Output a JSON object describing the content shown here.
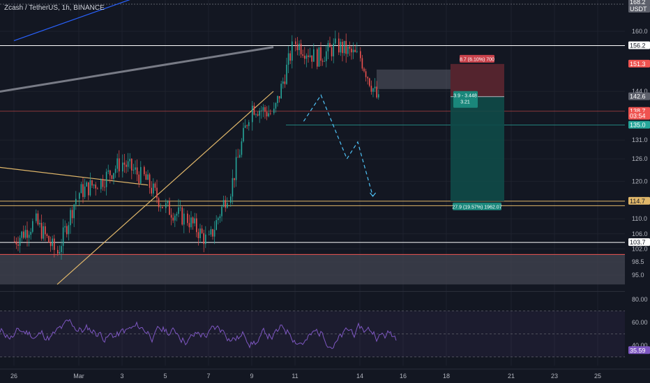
{
  "header": {
    "symbol": "Zcash / TetherUS, 1h, BINANCE"
  },
  "colors": {
    "background": "#131722",
    "grid": "#1e222d",
    "up": "#26a69a",
    "down": "#ef5350",
    "trend_blue": "#2962ff",
    "trend_gray": "#787b86",
    "trend_yellow": "#e0b76a",
    "resistance": "#ffffff",
    "support_zone": "#434651",
    "rsi": "#7e57c2",
    "target_zone": "#0f4a48",
    "stop_zone": "#5c2630"
  },
  "chart_data": [
    {
      "type": "candlestick",
      "title": "Zcash / TetherUS, 1h, BINANCE",
      "quote_currency": "USDT",
      "y_ticks": [
        "160.0",
        "144.0",
        "131.0",
        "126.0",
        "120.0",
        "110.0",
        "106.0",
        "102.0",
        "98.5",
        "95.0"
      ],
      "x_ticks": [
        "26",
        "Mar",
        "3",
        "5",
        "7",
        "9",
        "11",
        "14",
        "16",
        "18",
        "21",
        "23",
        "25"
      ],
      "price_path": [
        {
          "day": "26",
          "price": 104
        },
        {
          "day": "27",
          "price": 109
        },
        {
          "day": "28",
          "price": 101
        },
        {
          "day": "Mar",
          "price": 117
        },
        {
          "day": "2",
          "price": 120
        },
        {
          "day": "3",
          "price": 125
        },
        {
          "day": "4",
          "price": 121
        },
        {
          "day": "5",
          "price": 113
        },
        {
          "day": "6",
          "price": 110
        },
        {
          "day": "7",
          "price": 104
        },
        {
          "day": "8",
          "price": 118
        },
        {
          "day": "9",
          "price": 140
        },
        {
          "day": "10",
          "price": 138
        },
        {
          "day": "11",
          "price": 157
        },
        {
          "day": "12",
          "price": 153
        },
        {
          "day": "13",
          "price": 156
        },
        {
          "day": "14",
          "price": 153
        },
        {
          "day": "15",
          "price": 140
        }
      ],
      "price_labels": [
        {
          "text": "168.2",
          "value": 168.2,
          "kind": "gray"
        },
        {
          "text": "USDT",
          "value": 166.6,
          "kind": "gray"
        },
        {
          "text": "156.2",
          "value": 156.2,
          "kind": "white"
        },
        {
          "text": "151.3",
          "value": 151.3,
          "kind": "red"
        },
        {
          "text": "142.6",
          "value": 142.6,
          "kind": "gray"
        },
        {
          "text": "138.7",
          "value": 138.7,
          "kind": "red"
        },
        {
          "text": "03:54",
          "value": 137.4,
          "kind": "red"
        },
        {
          "text": "135.0",
          "value": 135.0,
          "kind": "teal"
        },
        {
          "text": "114.7",
          "value": 114.7,
          "kind": "yellow"
        },
        {
          "text": "103.7",
          "value": 103.7,
          "kind": "white"
        }
      ],
      "horizontal_levels": [
        {
          "name": "resistance",
          "value": 156.2
        },
        {
          "name": "support-upper",
          "value": 114.7
        },
        {
          "name": "support-lower",
          "value": 113.5
        },
        {
          "name": "support-low",
          "value": 103.7
        }
      ],
      "zones": [
        {
          "name": "demand-zone",
          "from": 92.5,
          "to": 100.5
        }
      ],
      "trendlines": [
        {
          "name": "upper-channel-blue",
          "from": {
            "day": 26.0,
            "price": 157.5
          },
          "to": {
            "day": 38.0,
            "price": 182
          }
        },
        {
          "name": "rising-resistance-gray",
          "from": {
            "day": 23.5,
            "price": 142.2
          },
          "to": {
            "day": 38.0,
            "price": 155.8
          }
        },
        {
          "name": "descending-yellow",
          "from": {
            "day": 23.5,
            "price": 125
          },
          "to": {
            "day": 32.2,
            "price": 119
          }
        },
        {
          "name": "rising-support-yellow",
          "from": {
            "day": 28.0,
            "price": 92.5
          },
          "to": {
            "day": 38.0,
            "price": 144
          }
        }
      ],
      "short_position": {
        "entry": 142.6,
        "stop": 151.3,
        "target": 114.7,
        "stop_label": "8.7 (6.10%) 700",
        "entry_label": "3.9 - 3.448",
        "entry_sub": "3.21",
        "target_label": "27.9 (19.57%) 1962.07"
      },
      "projected_path": [
        {
          "day": 39.4,
          "price": 136.0
        },
        {
          "day": 40.2,
          "price": 143.0
        },
        {
          "day": 41.4,
          "price": 126.0
        },
        {
          "day": 41.9,
          "price": 130.5
        },
        {
          "day": 42.6,
          "price": 116.0
        }
      ]
    },
    {
      "type": "line",
      "indicator": "RSI",
      "y_ticks": [
        "80.00",
        "60.00",
        "40.00"
      ],
      "levels": [
        70,
        50,
        30
      ],
      "last_value": "35.59",
      "ylim": [
        25,
        85
      ]
    }
  ]
}
